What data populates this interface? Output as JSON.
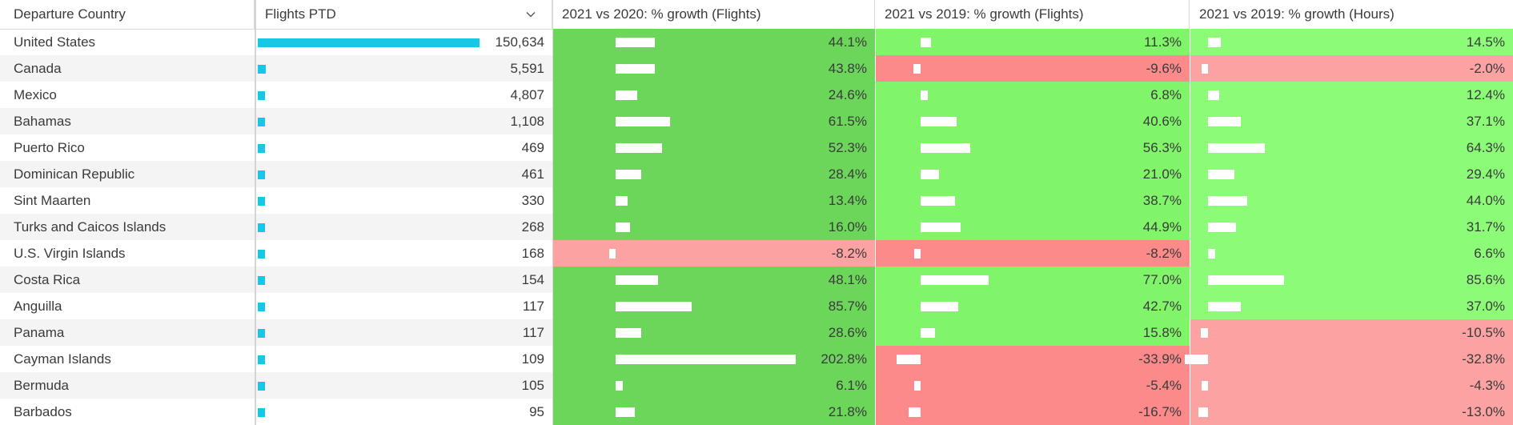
{
  "table": {
    "columns": [
      "Departure Country",
      "Flights PTD",
      "2021 vs 2020: % growth (Flights)",
      "2021 vs 2019: % growth (Flights)",
      "2021 vs 2019: % growth (Hours)"
    ],
    "sorted_column_icon": "chevron-down-icon",
    "colors": {
      "flight_bar": "#17c8e6",
      "col2_positive": "#6cd65a",
      "col3_positive": "#80f56a",
      "col4_positive": "#8cfc78",
      "negative_strong": "#fc8a8a",
      "negative_light": "#fca2a2"
    },
    "rows": [
      {
        "country": "United States",
        "flights": "150,634",
        "flights_value": 150634,
        "g2020f": "44.1%",
        "g2020f_value": 44.1,
        "g2019f": "11.3%",
        "g2019f_value": 11.3,
        "g2019h": "14.5%",
        "g2019h_value": 14.5
      },
      {
        "country": "Canada",
        "flights": "5,591",
        "flights_value": 5591,
        "g2020f": "43.8%",
        "g2020f_value": 43.8,
        "g2019f": "-9.6%",
        "g2019f_value": -9.6,
        "g2019h": "-2.0%",
        "g2019h_value": -2.0
      },
      {
        "country": "Mexico",
        "flights": "4,807",
        "flights_value": 4807,
        "g2020f": "24.6%",
        "g2020f_value": 24.6,
        "g2019f": "6.8%",
        "g2019f_value": 6.8,
        "g2019h": "12.4%",
        "g2019h_value": 12.4
      },
      {
        "country": "Bahamas",
        "flights": "1,108",
        "flights_value": 1108,
        "g2020f": "61.5%",
        "g2020f_value": 61.5,
        "g2019f": "40.6%",
        "g2019f_value": 40.6,
        "g2019h": "37.1%",
        "g2019h_value": 37.1
      },
      {
        "country": "Puerto Rico",
        "flights": "469",
        "flights_value": 469,
        "g2020f": "52.3%",
        "g2020f_value": 52.3,
        "g2019f": "56.3%",
        "g2019f_value": 56.3,
        "g2019h": "64.3%",
        "g2019h_value": 64.3
      },
      {
        "country": "Dominican Republic",
        "flights": "461",
        "flights_value": 461,
        "g2020f": "28.4%",
        "g2020f_value": 28.4,
        "g2019f": "21.0%",
        "g2019f_value": 21.0,
        "g2019h": "29.4%",
        "g2019h_value": 29.4
      },
      {
        "country": "Sint Maarten",
        "flights": "330",
        "flights_value": 330,
        "g2020f": "13.4%",
        "g2020f_value": 13.4,
        "g2019f": "38.7%",
        "g2019f_value": 38.7,
        "g2019h": "44.0%",
        "g2019h_value": 44.0
      },
      {
        "country": "Turks and Caicos Islands",
        "flights": "268",
        "flights_value": 268,
        "g2020f": "16.0%",
        "g2020f_value": 16.0,
        "g2019f": "44.9%",
        "g2019f_value": 44.9,
        "g2019h": "31.7%",
        "g2019h_value": 31.7
      },
      {
        "country": "U.S. Virgin Islands",
        "flights": "168",
        "flights_value": 168,
        "g2020f": "-8.2%",
        "g2020f_value": -8.2,
        "g2019f": "-8.2%",
        "g2019f_value": -8.2,
        "g2019h": "6.6%",
        "g2019h_value": 6.6
      },
      {
        "country": "Costa Rica",
        "flights": "154",
        "flights_value": 154,
        "g2020f": "48.1%",
        "g2020f_value": 48.1,
        "g2019f": "77.0%",
        "g2019f_value": 77.0,
        "g2019h": "85.6%",
        "g2019h_value": 85.6
      },
      {
        "country": "Anguilla",
        "flights": "117",
        "flights_value": 117,
        "g2020f": "85.7%",
        "g2020f_value": 85.7,
        "g2019f": "42.7%",
        "g2019f_value": 42.7,
        "g2019h": "37.0%",
        "g2019h_value": 37.0
      },
      {
        "country": "Panama",
        "flights": "117",
        "flights_value": 117,
        "g2020f": "28.6%",
        "g2020f_value": 28.6,
        "g2019f": "15.8%",
        "g2019f_value": 15.8,
        "g2019h": "-10.5%",
        "g2019h_value": -10.5
      },
      {
        "country": "Cayman Islands",
        "flights": "109",
        "flights_value": 109,
        "g2020f": "202.8%",
        "g2020f_value": 202.8,
        "g2019f": "-33.9%",
        "g2019f_value": -33.9,
        "g2019h": "-32.8%",
        "g2019h_value": -32.8
      },
      {
        "country": "Bermuda",
        "flights": "105",
        "flights_value": 105,
        "g2020f": "6.1%",
        "g2020f_value": 6.1,
        "g2019f": "-5.4%",
        "g2019f_value": -5.4,
        "g2019h": "-4.3%",
        "g2019h_value": -4.3
      },
      {
        "country": "Barbados",
        "flights": "95",
        "flights_value": 95,
        "g2020f": "21.8%",
        "g2020f_value": 21.8,
        "g2019f": "-16.7%",
        "g2019f_value": -16.7,
        "g2019h": "-13.0%",
        "g2019h_value": -13.0
      }
    ]
  }
}
